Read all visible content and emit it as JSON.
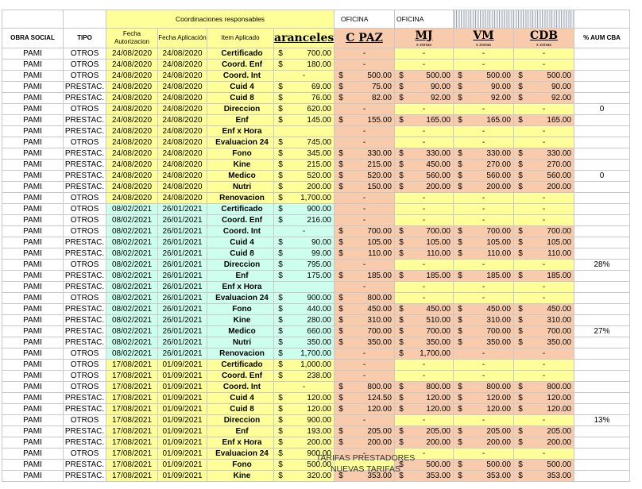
{
  "top_header": {
    "coordinaciones": "Coordinaciones responsables",
    "oficina1": "OFICINA",
    "oficina2": "OFICINA"
  },
  "columns": {
    "obra_social": "OBRA SOCIAL",
    "tipo": "TIPO",
    "fecha_autorizacion": "Fecha Autorizacion",
    "fecha_aplicacion": "Fecha Aplicación",
    "item_aplicado": "Item Aplicado",
    "aranceles": "aranceles",
    "cpaz": "C PAZ",
    "mj": "MJ",
    "vm": "VM",
    "cdb": "CDB",
    "zona_sub": "x zonas",
    "aum": "% AUM CBA"
  },
  "rows": [
    {
      "os": "PAMI",
      "tipo": "OTROS",
      "faut": "24/08/2020",
      "fapl": "24/08/2020",
      "item": "Certificado",
      "arancel": "700.00",
      "cpaz": "-",
      "mj": "-",
      "vm": "-",
      "cdb": "-",
      "pct": ""
    },
    {
      "os": "PAMI",
      "tipo": "OTROS",
      "faut": "24/08/2020",
      "fapl": "24/08/2020",
      "item": "Coord. Enf",
      "arancel": "180.00",
      "cpaz": "-",
      "mj": "-",
      "vm": "-",
      "cdb": "-",
      "pct": ""
    },
    {
      "os": "PAMI",
      "tipo": "OTROS",
      "faut": "24/08/2020",
      "fapl": "24/08/2020",
      "item": "Coord. Int",
      "arancel": "-",
      "cpaz": "500.00",
      "mj": "500.00",
      "vm": "500.00",
      "cdb": "500.00",
      "pct": ""
    },
    {
      "os": "PAMI",
      "tipo": "PRESTAC.",
      "faut": "24/08/2020",
      "fapl": "24/08/2020",
      "item": "Cuid 4",
      "arancel": "69.00",
      "cpaz": "75.00",
      "mj": "90.00",
      "vm": "90.00",
      "cdb": "90.00",
      "pct": ""
    },
    {
      "os": "PAMI",
      "tipo": "PRESTAC.",
      "faut": "24/08/2020",
      "fapl": "24/08/2020",
      "item": "Cuid 8",
      "arancel": "76.00",
      "cpaz": "82.00",
      "mj": "92.00",
      "vm": "92.00",
      "cdb": "92.00",
      "pct": ""
    },
    {
      "os": "PAMI",
      "tipo": "OTROS",
      "faut": "24/08/2020",
      "fapl": "24/08/2020",
      "item": "Direccion",
      "arancel": "620.00",
      "cpaz": "-",
      "mj": "-",
      "vm": "-",
      "cdb": "-",
      "pct": "0"
    },
    {
      "os": "PAMI",
      "tipo": "PRESTAC.",
      "faut": "24/08/2020",
      "fapl": "24/08/2020",
      "item": "Enf",
      "arancel": "145.00",
      "cpaz": "155.00",
      "mj": "165.00",
      "vm": "165.00",
      "cdb": "165.00",
      "pct": ""
    },
    {
      "os": "PAMI",
      "tipo": "PRESTAC.",
      "faut": "24/08/2020",
      "fapl": "24/08/2020",
      "item": "Enf x Hora",
      "arancel": "",
      "cpaz": "-",
      "mj": "-",
      "vm": "-",
      "cdb": "-",
      "pct": ""
    },
    {
      "os": "PAMI",
      "tipo": "OTROS",
      "faut": "24/08/2020",
      "fapl": "24/08/2020",
      "item": "Evaluacion 24",
      "arancel": "745.00",
      "cpaz": "-",
      "mj": "-",
      "vm": "-",
      "cdb": "-",
      "pct": ""
    },
    {
      "os": "PAMI",
      "tipo": "PRESTAC.",
      "faut": "24/08/2020",
      "fapl": "24/08/2020",
      "item": "Fono",
      "arancel": "345.00",
      "cpaz": "330.00",
      "mj": "330.00",
      "vm": "330.00",
      "cdb": "330.00",
      "pct": ""
    },
    {
      "os": "PAMI",
      "tipo": "PRESTAC.",
      "faut": "24/08/2020",
      "fapl": "24/08/2020",
      "item": "Kine",
      "arancel": "215.00",
      "cpaz": "215.00",
      "mj": "450.00",
      "vm": "270.00",
      "cdb": "270.00",
      "pct": ""
    },
    {
      "os": "PAMI",
      "tipo": "PRESTAC.",
      "faut": "24/08/2020",
      "fapl": "24/08/2020",
      "item": "Medico",
      "arancel": "520.00",
      "cpaz": "520.00",
      "mj": "560.00",
      "vm": "560.00",
      "cdb": "560.00",
      "pct": "0"
    },
    {
      "os": "PAMI",
      "tipo": "PRESTAC.",
      "faut": "24/08/2020",
      "fapl": "24/08/2020",
      "item": "Nutri",
      "arancel": "200.00",
      "cpaz": "150.00",
      "mj": "200.00",
      "vm": "200.00",
      "cdb": "200.00",
      "pct": ""
    },
    {
      "os": "PAMI",
      "tipo": "OTROS",
      "faut": "24/08/2020",
      "fapl": "24/08/2020",
      "item": "Renovacion",
      "arancel": "1,700.00",
      "cpaz": "-",
      "mj": "-",
      "vm": "-",
      "cdb": "-",
      "pct": ""
    },
    {
      "os": "PAMI",
      "tipo": "OTROS",
      "faut": "08/02/2021",
      "fapl": "26/01/2021",
      "item": "Certificado",
      "arancel": "900.00",
      "cpaz": "-",
      "mj": "-",
      "vm": "-",
      "cdb": "-",
      "pct": ""
    },
    {
      "os": "PAMI",
      "tipo": "OTROS",
      "faut": "08/02/2021",
      "fapl": "26/01/2021",
      "item": "Coord. Enf",
      "arancel": "216.00",
      "cpaz": "-",
      "mj": "-",
      "vm": "-",
      "cdb": "-",
      "pct": ""
    },
    {
      "os": "PAMI",
      "tipo": "OTROS",
      "faut": "08/02/2021",
      "fapl": "26/01/2021",
      "item": "Coord. Int",
      "arancel": "-",
      "cpaz": "700.00",
      "mj": "700.00",
      "vm": "700.00",
      "cdb": "700.00",
      "pct": ""
    },
    {
      "os": "PAMI",
      "tipo": "PRESTAC.",
      "faut": "08/02/2021",
      "fapl": "26/01/2021",
      "item": "Cuid 4",
      "arancel": "90.00",
      "cpaz": "105.00",
      "mj": "105.00",
      "vm": "105.00",
      "cdb": "105.00",
      "pct": ""
    },
    {
      "os": "PAMI",
      "tipo": "PRESTAC.",
      "faut": "08/02/2021",
      "fapl": "26/01/2021",
      "item": "Cuid 8",
      "arancel": "99.00",
      "cpaz": "110.00",
      "mj": "110.00",
      "vm": "110.00",
      "cdb": "110.00",
      "pct": ""
    },
    {
      "os": "PAMI",
      "tipo": "OTROS",
      "faut": "08/02/2021",
      "fapl": "26/01/2021",
      "item": "Direccion",
      "arancel": "795.00",
      "cpaz": "-",
      "mj": "-",
      "vm": "-",
      "cdb": "-",
      "pct": "28%"
    },
    {
      "os": "PAMI",
      "tipo": "PRESTAC.",
      "faut": "08/02/2021",
      "fapl": "26/01/2021",
      "item": "Enf",
      "arancel": "175.00",
      "cpaz": "185.00",
      "mj": "185.00",
      "vm": "185.00",
      "cdb": "185.00",
      "pct": ""
    },
    {
      "os": "PAMI",
      "tipo": "PRESTAC.",
      "faut": "08/02/2021",
      "fapl": "26/01/2021",
      "item": "Enf x Hora",
      "arancel": "",
      "cpaz": "-",
      "mj": "-",
      "vm": "-",
      "cdb": "-",
      "pct": ""
    },
    {
      "os": "PAMI",
      "tipo": "OTROS",
      "faut": "08/02/2021",
      "fapl": "26/01/2021",
      "item": "Evaluacion 24",
      "arancel": "900.00",
      "cpaz": "800.00",
      "mj": "-",
      "vm": "-",
      "cdb": "-",
      "pct": ""
    },
    {
      "os": "PAMI",
      "tipo": "PRESTAC.",
      "faut": "08/02/2021",
      "fapl": "26/01/2021",
      "item": "Fono",
      "arancel": "440.00",
      "cpaz": "450.00",
      "mj": "450.00",
      "vm": "450.00",
      "cdb": "450.00",
      "pct": ""
    },
    {
      "os": "PAMI",
      "tipo": "PRESTAC.",
      "faut": "08/02/2021",
      "fapl": "26/01/2021",
      "item": "Kine",
      "arancel": "280.00",
      "cpaz": "310.00",
      "mj": "510.00",
      "vm": "310.00",
      "cdb": "310.00",
      "pct": ""
    },
    {
      "os": "PAMI",
      "tipo": "PRESTAC.",
      "faut": "08/02/2021",
      "fapl": "26/01/2021",
      "item": "Medico",
      "arancel": "660.00",
      "cpaz": "700.00",
      "mj": "700.00",
      "vm": "700.00",
      "cdb": "700.00",
      "pct": "27%"
    },
    {
      "os": "PAMI",
      "tipo": "PRESTAC.",
      "faut": "08/02/2021",
      "fapl": "26/01/2021",
      "item": "Nutri",
      "arancel": "350.00",
      "cpaz": "350.00",
      "mj": "350.00",
      "vm": "350.00",
      "cdb": "350.00",
      "pct": ""
    },
    {
      "os": "PAMI",
      "tipo": "OTROS",
      "faut": "08/02/2021",
      "fapl": "26/01/2021",
      "item": "Renovacion",
      "arancel": "1,700.00",
      "cpaz": "-",
      "mj": "1,700.00",
      "vm": "-",
      "cdb": "-",
      "pct": ""
    },
    {
      "os": "PAMI",
      "tipo": "OTROS",
      "faut": "17/08/2021",
      "fapl": "01/09/2021",
      "item": "Certificado",
      "arancel": "1,000.00",
      "cpaz": "-",
      "mj": "-",
      "vm": "-",
      "cdb": "-",
      "pct": ""
    },
    {
      "os": "PAMI",
      "tipo": "OTROS",
      "faut": "17/08/2021",
      "fapl": "01/09/2021",
      "item": "Coord. Enf",
      "arancel": "238.00",
      "cpaz": "-",
      "mj": "-",
      "vm": "-",
      "cdb": "-",
      "pct": ""
    },
    {
      "os": "PAMI",
      "tipo": "OTROS",
      "faut": "17/08/2021",
      "fapl": "01/09/2021",
      "item": "Coord. Int",
      "arancel": "-",
      "cpaz": "800.00",
      "mj": "800.00",
      "vm": "800.00",
      "cdb": "800.00",
      "pct": ""
    },
    {
      "os": "PAMI",
      "tipo": "PRESTAC.",
      "faut": "17/08/2021",
      "fapl": "01/09/2021",
      "item": "Cuid 4",
      "arancel": "120.00",
      "cpaz": "124.50",
      "mj": "120.00",
      "vm": "120.00",
      "cdb": "120.00",
      "pct": ""
    },
    {
      "os": "PAMI",
      "tipo": "PRESTAC.",
      "faut": "17/08/2021",
      "fapl": "01/09/2021",
      "item": "Cuid 8",
      "arancel": "120.00",
      "cpaz": "120.00",
      "mj": "120.00",
      "vm": "120.00",
      "cdb": "120.00",
      "pct": ""
    },
    {
      "os": "PAMI",
      "tipo": "OTROS",
      "faut": "17/08/2021",
      "fapl": "01/09/2021",
      "item": "Direccion",
      "arancel": "900.00",
      "cpaz": "-",
      "mj": "-",
      "vm": "-",
      "cdb": "-",
      "pct": "13%"
    },
    {
      "os": "PAMI",
      "tipo": "PRESTAC.",
      "faut": "17/08/2021",
      "fapl": "01/09/2021",
      "item": "Enf",
      "arancel": "193.00",
      "cpaz": "205.00",
      "mj": "205.00",
      "vm": "205.00",
      "cdb": "205.00",
      "pct": ""
    },
    {
      "os": "PAMI",
      "tipo": "PRESTAC.",
      "faut": "17/08/2021",
      "fapl": "01/09/2021",
      "item": "Enf x Hora",
      "arancel": "200.00",
      "cpaz": "200.00",
      "mj": "200.00",
      "vm": "200.00",
      "cdb": "200.00",
      "pct": ""
    },
    {
      "os": "PAMI",
      "tipo": "OTROS",
      "faut": "17/08/2021",
      "fapl": "01/09/2021",
      "item": "Evaluacion 24",
      "arancel": "900.00",
      "cpaz": "-",
      "mj": "-",
      "vm": "-",
      "cdb": "-",
      "pct": ""
    },
    {
      "os": "PAMI",
      "tipo": "PRESTAC.",
      "faut": "17/08/2021",
      "fapl": "01/09/2021",
      "item": "Fono",
      "arancel": "500.00",
      "cpaz": "",
      "mj": "500.00",
      "vm": "500.00",
      "cdb": "500.00",
      "pct": ""
    },
    {
      "os": "PAMI",
      "tipo": "PRESTAC.",
      "faut": "17/08/2021",
      "fapl": "01/09/2021",
      "item": "Kine",
      "arancel": "320.00",
      "cpaz": "353.00",
      "mj": "353.00",
      "vm": "353.00",
      "cdb": "353.00",
      "pct": ""
    }
  ],
  "overlay": {
    "line1": "TARIFAS PRESTADORES",
    "line2": "NUEVAS TARIFAS"
  },
  "colors": {
    "yellow": "#ffff99",
    "cyan": "#ccffee",
    "orange": "#f8cbad"
  }
}
